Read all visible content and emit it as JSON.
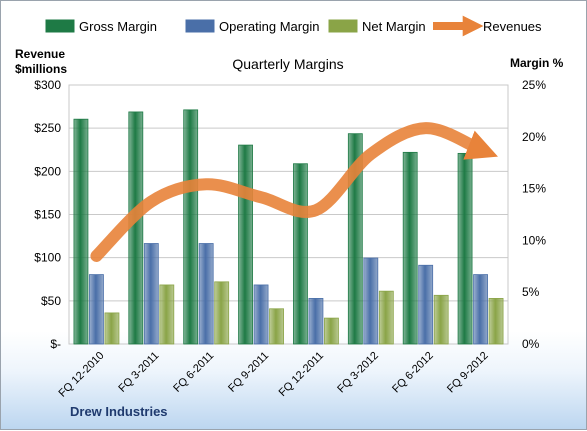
{
  "chart_data": {
    "type": "bar",
    "title": "Quarterly Margins",
    "ylabel_left": [
      "Revenue",
      "$millions"
    ],
    "ylabel_right": "Margin %",
    "footer": "Drew Industries",
    "categories": [
      "FQ 12-2010",
      "FQ 3-2011",
      "FQ 6-2011",
      "FQ 9-2011",
      "FQ 12-2011",
      "FQ 3-2012",
      "FQ 6-2012",
      "FQ 9-2012"
    ],
    "left_axis": {
      "ylim": [
        0,
        300
      ],
      "ticks": [
        0,
        50,
        100,
        150,
        200,
        250,
        300
      ],
      "tick_labels": [
        "$-",
        "$50",
        "$100",
        "$150",
        "$200",
        "$250",
        "$300"
      ]
    },
    "right_axis": {
      "ylim": [
        0,
        25
      ],
      "ticks": [
        0,
        5,
        10,
        15,
        20,
        25
      ],
      "tick_labels": [
        "0%",
        "5%",
        "10%",
        "15%",
        "20%",
        "25%"
      ]
    },
    "series": [
      {
        "name": "Gross Margin",
        "kind": "bar",
        "axis": "right",
        "color": "#1e7a45",
        "values": [
          21.7,
          22.4,
          22.6,
          19.2,
          17.4,
          20.3,
          18.5,
          18.4
        ]
      },
      {
        "name": "Operating Margin",
        "kind": "bar",
        "axis": "right",
        "color": "#4a6fa8",
        "values": [
          6.7,
          9.7,
          9.7,
          5.7,
          4.4,
          8.3,
          7.6,
          6.7
        ]
      },
      {
        "name": "Net Margin",
        "kind": "bar",
        "axis": "right",
        "color": "#8aa447",
        "values": [
          3.0,
          5.7,
          6.0,
          3.4,
          2.5,
          5.1,
          4.7,
          4.4
        ]
      },
      {
        "name": "Revenues",
        "kind": "line",
        "axis": "left",
        "color": "#e8833a",
        "values": [
          102,
          165,
          185,
          170,
          155,
          220,
          250,
          225
        ]
      }
    ],
    "grid": true,
    "legend_position": "top"
  }
}
